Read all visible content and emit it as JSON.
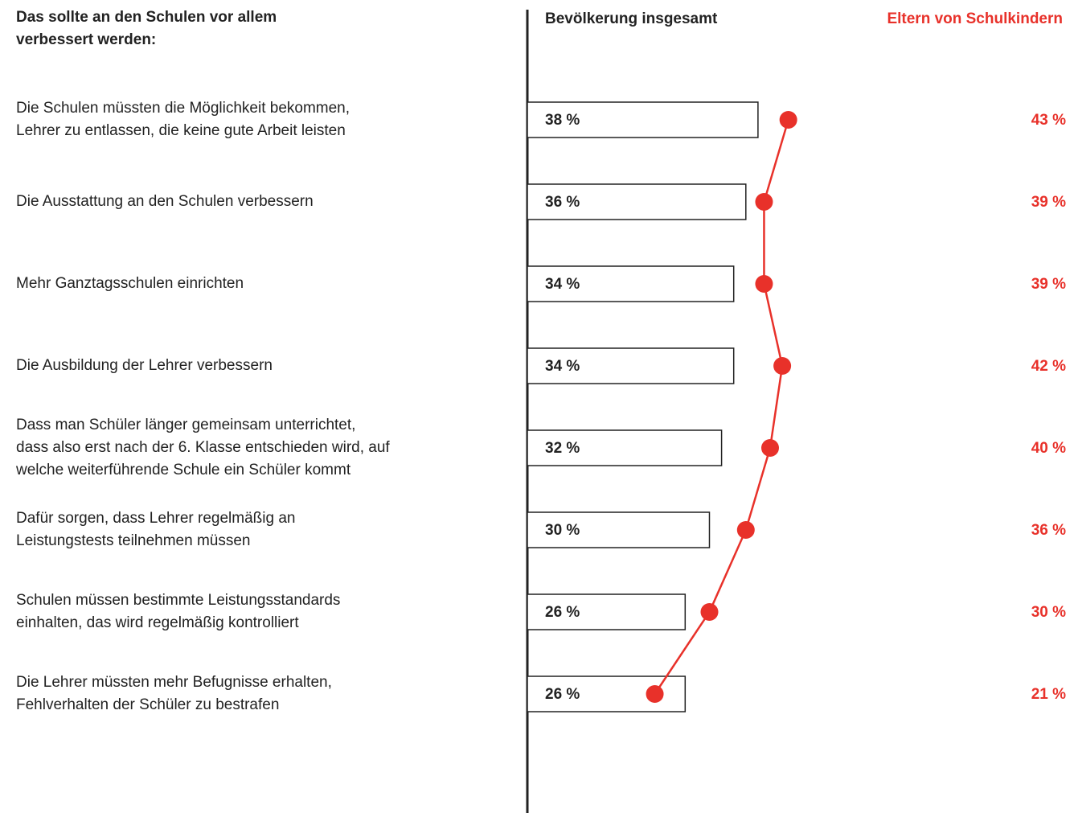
{
  "chart_data": {
    "type": "bar-line",
    "title": [
      "Das sollte an den Schulen vor allem",
      "verbessert werden:"
    ],
    "categories": [
      [
        "Die Schulen müssten die Möglichkeit bekommen,",
        "Lehrer zu entlassen, die keine gute Arbeit leisten"
      ],
      [
        "Die Ausstattung an den Schulen verbessern"
      ],
      [
        "Mehr Ganztagsschulen einrichten"
      ],
      [
        "Die Ausbildung der Lehrer verbessern"
      ],
      [
        "Dass man Schüler länger gemeinsam unterrichtet,",
        "dass also erst nach der 6. Klasse entschieden wird, auf",
        "welche weiterführende Schule ein Schüler kommt"
      ],
      [
        "Dafür sorgen, dass Lehrer regelmäßig an",
        "Leistungstests teilnehmen müssen"
      ],
      [
        "Schulen müssen bestimmte Leistungsstandards",
        "einhalten, das wird regelmäßig kontrolliert"
      ],
      [
        "Die Lehrer müssten mehr Befugnisse erhalten,",
        "Fehlverhalten der Schüler zu bestrafen"
      ]
    ],
    "series": [
      {
        "name": "Bevölkerung insgesamt",
        "color": "#ffffff",
        "values": [
          38,
          36,
          34,
          34,
          32,
          30,
          26,
          26
        ],
        "value_labels": [
          "38 %",
          "36 %",
          "34 %",
          "34 %",
          "32 %",
          "30 %",
          "26 %",
          "26 %"
        ]
      },
      {
        "name": "Eltern von Schulkindern",
        "color": "#e8312a",
        "values": [
          43,
          39,
          39,
          42,
          40,
          36,
          30,
          21
        ],
        "value_labels": [
          "43 %",
          "39 %",
          "39 %",
          "42 %",
          "40 %",
          "36 %",
          "30 %",
          "21 %"
        ]
      }
    ]
  }
}
